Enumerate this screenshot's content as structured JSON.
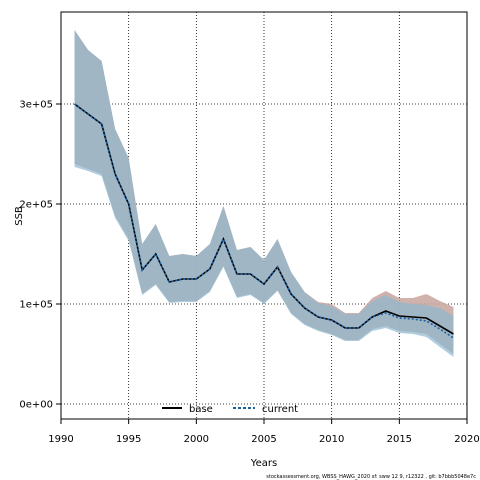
{
  "chart_data": {
    "type": "line",
    "xlabel": "Years",
    "ylabel": "SSB",
    "xlim": [
      1990,
      2020
    ],
    "ylim": [
      -15000,
      392000
    ],
    "x_ticks": [
      1990,
      1995,
      2000,
      2005,
      2010,
      2015,
      2020
    ],
    "x_tick_labels": [
      "1990",
      "1995",
      "2000",
      "2005",
      "2010",
      "2015",
      "2020"
    ],
    "y_ticks": [
      0,
      100000,
      200000,
      300000
    ],
    "y_tick_labels": [
      "0e+00",
      "1e+05",
      "2e+05",
      "3e+05"
    ],
    "grid": true,
    "legend_position": "bottom",
    "x": [
      1991,
      1992,
      1993,
      1994,
      1995,
      1996,
      1997,
      1998,
      1999,
      2000,
      2001,
      2002,
      2003,
      2004,
      2005,
      2006,
      2007,
      2008,
      2009,
      2010,
      2011,
      2012,
      2013,
      2014,
      2015,
      2016,
      2017,
      2018,
      2019
    ],
    "series": [
      {
        "name": "base",
        "color": "#000000",
        "line_style": "solid",
        "band_color": "#c8a49d",
        "values": [
          300000,
          290000,
          280000,
          230000,
          200000,
          134000,
          150000,
          122000,
          125000,
          125000,
          135000,
          165000,
          130000,
          130000,
          120000,
          137000,
          110000,
          96000,
          87000,
          84000,
          76000,
          76000,
          87000,
          93000,
          88000,
          87000,
          86000,
          78000,
          70000
        ],
        "lower": [
          240000,
          235000,
          230000,
          188000,
          165000,
          110000,
          120000,
          102000,
          103000,
          103000,
          113000,
          138000,
          107000,
          110000,
          101000,
          114000,
          91000,
          80000,
          74000,
          70000,
          64000,
          64000,
          75000,
          78000,
          73000,
          72000,
          70000,
          60000,
          50000
        ],
        "upper": [
          374000,
          354000,
          343000,
          275000,
          246000,
          160000,
          180000,
          148000,
          150000,
          148000,
          160000,
          198000,
          154000,
          157000,
          144000,
          165000,
          132000,
          112000,
          102000,
          100000,
          91000,
          91000,
          106000,
          113000,
          106000,
          106000,
          110000,
          103000,
          97000
        ]
      },
      {
        "name": "current",
        "color": "#1a5fa0",
        "line_style": "dashed",
        "band_color": "#8db8d0",
        "values": [
          300000,
          290000,
          280000,
          230000,
          200000,
          134000,
          150000,
          122000,
          125000,
          125000,
          135000,
          165000,
          130000,
          130000,
          120000,
          137000,
          110000,
          96000,
          87000,
          84000,
          76000,
          76000,
          87000,
          91000,
          86000,
          85000,
          83000,
          75000,
          66000
        ],
        "lower": [
          237000,
          233000,
          228000,
          186000,
          163000,
          109000,
          119000,
          101000,
          102000,
          102000,
          112000,
          137000,
          106000,
          109000,
          100000,
          113000,
          90000,
          79000,
          73000,
          69000,
          63000,
          63000,
          73000,
          76000,
          71000,
          70000,
          67000,
          57000,
          47000
        ],
        "upper": [
          374000,
          354000,
          343000,
          275000,
          246000,
          160000,
          180000,
          148000,
          150000,
          148000,
          160000,
          198000,
          154000,
          157000,
          144000,
          165000,
          132000,
          112000,
          101000,
          98000,
          90000,
          90000,
          103000,
          109000,
          102000,
          100000,
          99000,
          96000,
          88000
        ]
      }
    ],
    "footer": "stockassessment.org, WBSS_HAWG_2020 sf: sww 12 9, r12322 , git: b7bbb5048e7c"
  }
}
